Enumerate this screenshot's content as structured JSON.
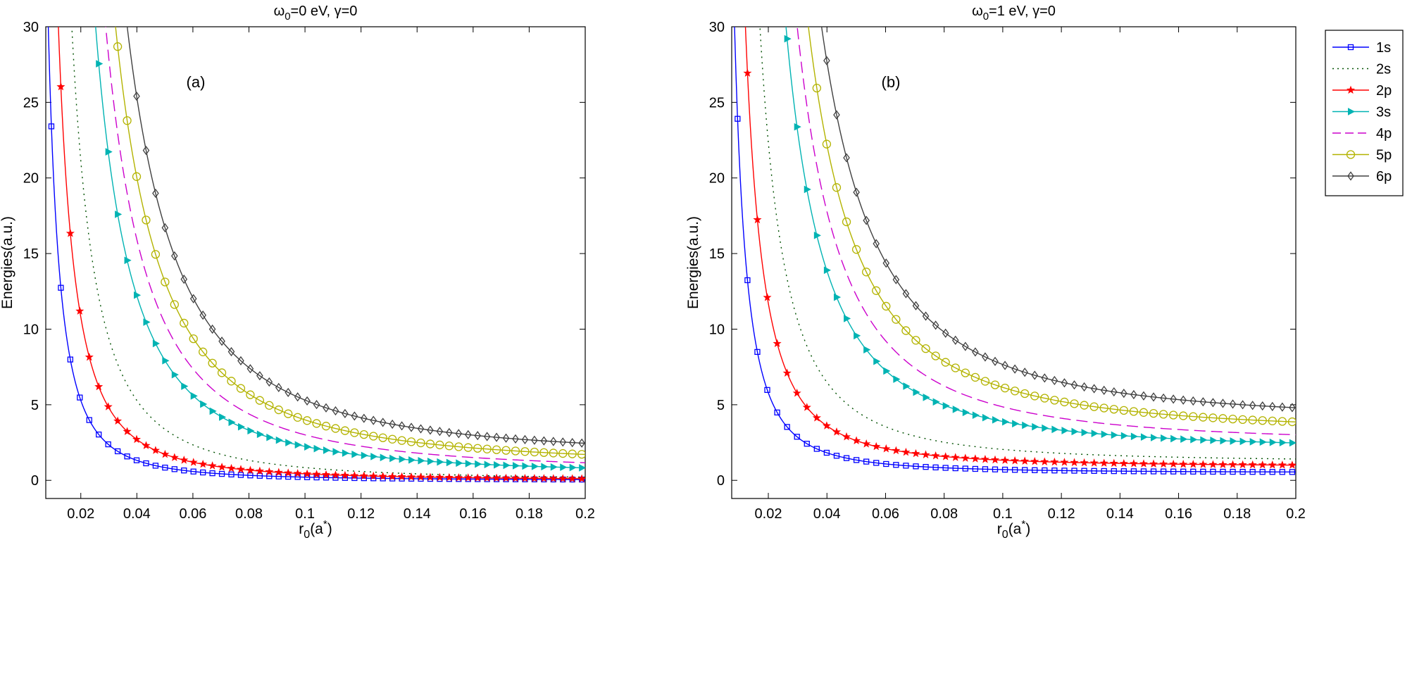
{
  "chart_data": [
    {
      "type": "line",
      "title_main": "ω",
      "title_sub": "0",
      "title_rest": "=0 eV, γ=0",
      "panel_label": "(a)",
      "xlabel_main": "r",
      "xlabel_sub": "0",
      "xlabel_rest": "(a",
      "xlabel_sup": "*",
      "xlabel_end": ")",
      "ylabel": "Energies(a.u.)",
      "xlim": [
        0.0075,
        0.2
      ],
      "ylim": [
        -1.2,
        30
      ],
      "xticks": [
        0.02,
        0.04,
        0.06,
        0.08,
        0.1,
        0.12,
        0.14,
        0.16,
        0.18,
        0.2
      ],
      "xtick_labels": [
        "0.02",
        "0.04",
        "0.06",
        "0.08",
        "0.1",
        "0.12",
        "0.14",
        "0.16",
        "0.18",
        "0.2"
      ],
      "yticks": [
        0,
        5,
        10,
        15,
        20,
        25,
        30
      ],
      "ytick_labels": [
        "0",
        "5",
        "10",
        "15",
        "20",
        "25",
        "30"
      ],
      "series": [
        {
          "name": "1s",
          "offset": 0.0,
          "k": 0.002113,
          "color": "#0000ff"
        },
        {
          "name": "2s",
          "offset": 0.0,
          "k": 0.008453,
          "color": "#005000"
        },
        {
          "name": "2p",
          "offset": 0.0,
          "k": 0.004319,
          "color": "#ff0000"
        },
        {
          "name": "3s",
          "offset": 0.35,
          "k": 0.01896,
          "color": "#00b3b3"
        },
        {
          "name": "4p",
          "offset": 0.55,
          "k": 0.0246,
          "color": "#cc00cc"
        },
        {
          "name": "5p",
          "offset": 0.95,
          "k": 0.0305,
          "color": "#b3b300"
        },
        {
          "name": "6p",
          "offset": 1.5,
          "k": 0.0381,
          "color": "#404040"
        }
      ]
    },
    {
      "type": "line",
      "title_main": "ω",
      "title_sub": "0",
      "title_rest": "=1 eV, γ=0",
      "panel_label": "(b)",
      "xlabel_main": "r",
      "xlabel_sub": "0",
      "xlabel_rest": "(a",
      "xlabel_sup": "*",
      "xlabel_end": ")",
      "ylabel": "Energies(a.u.)",
      "xlim": [
        0.0075,
        0.2
      ],
      "ylim": [
        -1.2,
        30
      ],
      "xticks": [
        0.02,
        0.04,
        0.06,
        0.08,
        0.1,
        0.12,
        0.14,
        0.16,
        0.18,
        0.2
      ],
      "xtick_labels": [
        "0.02",
        "0.04",
        "0.06",
        "0.08",
        "0.1",
        "0.12",
        "0.14",
        "0.16",
        "0.18",
        "0.2"
      ],
      "yticks": [
        0,
        5,
        10,
        15,
        20,
        25,
        30
      ],
      "ytick_labels": [
        "0",
        "5",
        "10",
        "15",
        "20",
        "25",
        "30"
      ],
      "series": [
        {
          "name": "1s",
          "offset": 0.5,
          "k": 0.002113,
          "decay": 0.015,
          "color": "#0000ff"
        },
        {
          "name": "2s",
          "offset": 1.2,
          "k": 0.008453,
          "decay": 0.02,
          "color": "#005000"
        },
        {
          "name": "2p",
          "offset": 0.9,
          "k": 0.004319,
          "decay": 0.02,
          "color": "#ff0000"
        },
        {
          "name": "3s",
          "offset": 2.0,
          "k": 0.01896,
          "decay": 0.03,
          "color": "#00b3b3"
        },
        {
          "name": "4p",
          "offset": 2.4,
          "k": 0.0246,
          "decay": 0.03,
          "color": "#cc00cc"
        },
        {
          "name": "5p",
          "offset": 3.1,
          "k": 0.0305,
          "decay": 0.035,
          "color": "#b3b300"
        },
        {
          "name": "6p",
          "offset": 3.85,
          "k": 0.0381,
          "decay": 0.04,
          "color": "#404040"
        }
      ]
    }
  ],
  "legend": {
    "placement": "outside-right",
    "entries": [
      {
        "label": "1s",
        "style": "solid",
        "marker": "square",
        "color": "#0000ff"
      },
      {
        "label": "2s",
        "style": "dotted",
        "marker": "none",
        "color": "#005000"
      },
      {
        "label": "2p",
        "style": "solid",
        "marker": "star",
        "color": "#ff0000"
      },
      {
        "label": "3s",
        "style": "solid",
        "marker": "triangle-right",
        "color": "#00b3b3"
      },
      {
        "label": "4p",
        "style": "dashed",
        "marker": "none",
        "color": "#cc00cc"
      },
      {
        "label": "5p",
        "style": "solid",
        "marker": "circle",
        "color": "#b3b300"
      },
      {
        "label": "6p",
        "style": "solid",
        "marker": "diamond",
        "color": "#404040"
      }
    ]
  }
}
